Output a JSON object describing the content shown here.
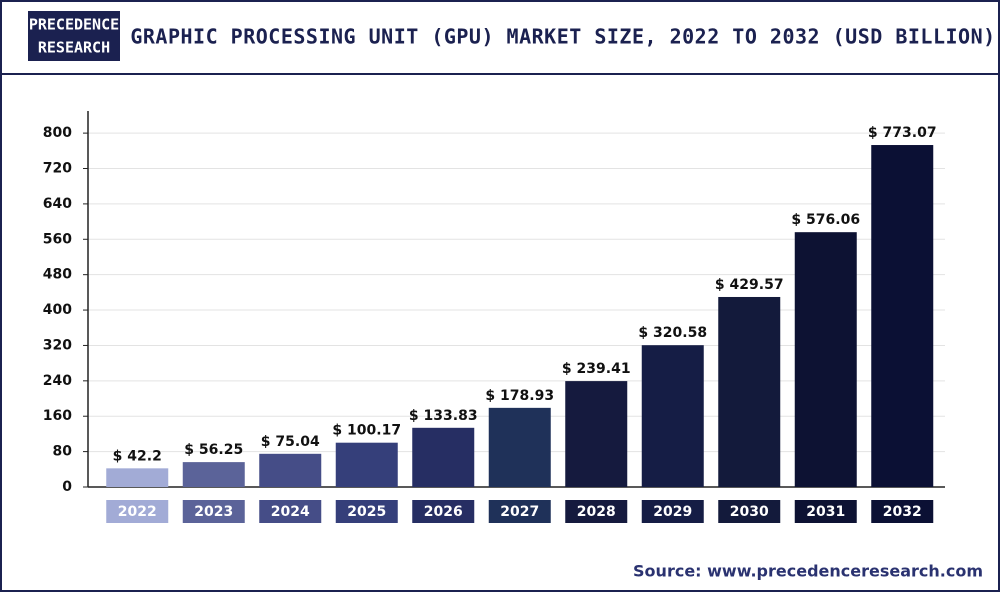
{
  "logo": [
    "PRECEDENCE",
    "RESEARCH"
  ],
  "chart_data": {
    "type": "bar",
    "title": "GRAPHIC PROCESSING UNIT (GPU) MARKET SIZE, 2022 TO 2032 (USD BILLION)",
    "categories": [
      "2022",
      "2023",
      "2024",
      "2025",
      "2026",
      "2027",
      "2028",
      "2029",
      "2030",
      "2031",
      "2032"
    ],
    "values": [
      42.2,
      56.25,
      75.04,
      100.17,
      133.83,
      178.93,
      239.41,
      320.58,
      429.57,
      576.06,
      773.07
    ],
    "value_labels": [
      "$ 42.2",
      "$ 56.25",
      "$ 75.04",
      "$ 100.17",
      "$ 133.83",
      "$ 178.93",
      "$ 239.41",
      "$ 320.58",
      "$ 429.57",
      "$ 576.06",
      "$ 773.07"
    ],
    "colors": [
      "#a2abd6",
      "#5b6399",
      "#454d87",
      "#353f7a",
      "#262e63",
      "#1f3159",
      "#151a3e",
      "#151d45",
      "#131a3b",
      "#0d1233",
      "#0b1034"
    ],
    "ylim": [
      0,
      850
    ],
    "yticks": [
      0,
      80,
      160,
      240,
      320,
      400,
      480,
      560,
      640,
      720,
      800
    ],
    "grid": true,
    "source": "Source: www.precedenceresearch.com"
  }
}
